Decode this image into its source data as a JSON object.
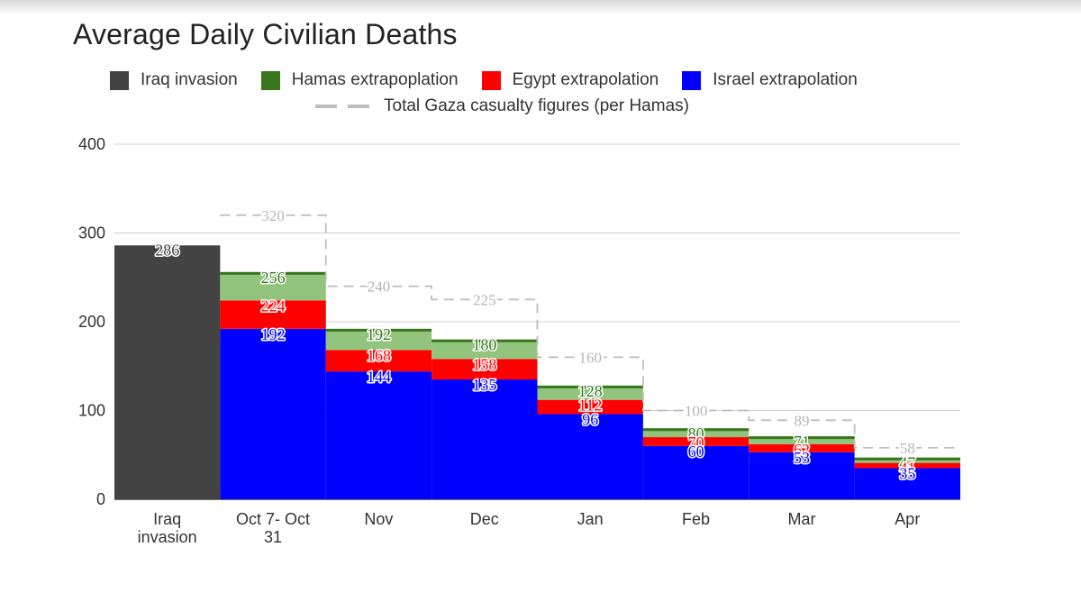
{
  "chart_data": {
    "type": "bar",
    "title": "Average Daily Civilian Deaths",
    "categories": [
      "Iraq invasion",
      "Oct 7- Oct 31",
      "Nov",
      "Dec",
      "Jan",
      "Feb",
      "Mar",
      "Apr"
    ],
    "category_lines": [
      [
        "Iraq",
        "invasion"
      ],
      [
        "Oct 7- Oct",
        "31"
      ],
      [
        "Nov"
      ],
      [
        "Dec"
      ],
      [
        "Jan"
      ],
      [
        "Feb"
      ],
      [
        "Mar"
      ],
      [
        "Apr"
      ]
    ],
    "ylim": [
      0,
      400
    ],
    "yticks": [
      0,
      100,
      200,
      300,
      400
    ],
    "grid": true,
    "legend_position": "top",
    "series": [
      {
        "name": "Iraq invasion",
        "color": "#434343",
        "values": [
          286,
          null,
          null,
          null,
          null,
          null,
          null,
          null
        ]
      },
      {
        "name": "Hamas extrapoplation",
        "color": "#38761d",
        "values": [
          null,
          256,
          192,
          180,
          128,
          80,
          71,
          47
        ]
      },
      {
        "name": "Egypt extrapolation",
        "color": "#ff0000",
        "values": [
          null,
          224,
          168,
          158,
          112,
          70,
          62,
          41
        ]
      },
      {
        "name": "Israel extrapolation",
        "color": "#0000ff",
        "values": [
          null,
          192,
          144,
          135,
          96,
          60,
          53,
          35
        ]
      }
    ],
    "line_series": {
      "name": "Total Gaza casualty figures (per Hamas)",
      "color": "#bdbdbd",
      "values": [
        null,
        320,
        240,
        225,
        160,
        100,
        89,
        58
      ]
    },
    "label_colors": {
      "iraq": "#444444",
      "hamas": "#38761d",
      "egypt": "#ff0000",
      "israel": "#0000ff"
    },
    "hamas_fill": "#93c47d",
    "hamas_edge": "#38761d"
  }
}
